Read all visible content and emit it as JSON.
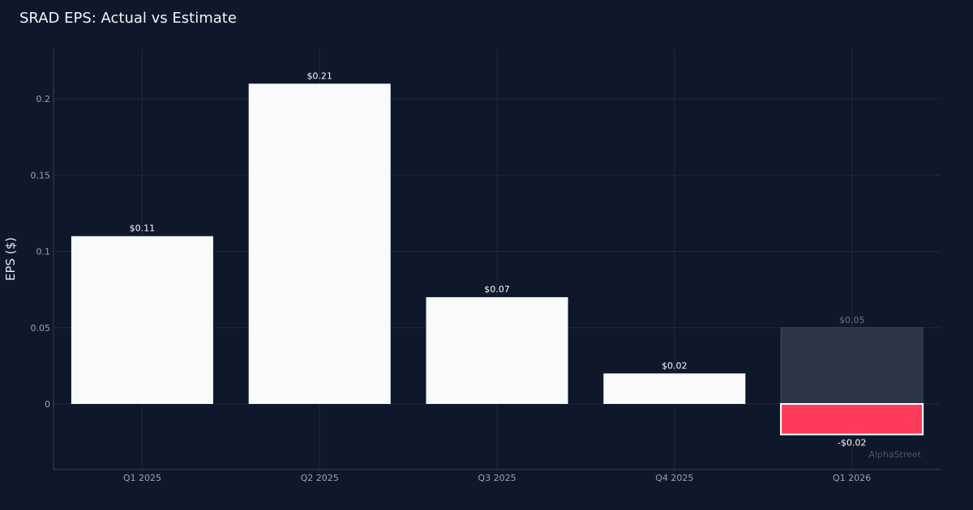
{
  "chart_data": {
    "type": "bar",
    "title": "SRAD EPS: Actual vs Estimate",
    "xlabel": "",
    "ylabel": "EPS ($)",
    "ylim": [
      -0.043,
      0.233
    ],
    "yticks": [
      0,
      0.05,
      0.1,
      0.15,
      0.2
    ],
    "ytick_labels": [
      "0",
      "0.05",
      "0.1",
      "0.15",
      "0.2"
    ],
    "grid": true,
    "categories": [
      "Q1 2025",
      "Q2 2025",
      "Q3 2025",
      "Q4 2025",
      "Q1 2026"
    ],
    "series": [
      {
        "values": [
          0.11,
          0.21,
          0.07,
          0.02,
          -0.02
        ],
        "labels": [
          "$0.11",
          "$0.21",
          "$0.07",
          "$0.02",
          "-$0.02"
        ]
      },
      {
        "values": [
          null,
          null,
          null,
          null,
          0.05
        ],
        "labels": [
          "",
          "",
          "",
          "",
          "$0.05"
        ]
      }
    ],
    "watermark": "AlphaStreet"
  },
  "colors": {
    "background": "#0f172a",
    "actual_bar": "#f8fafc",
    "miss_bar": "#ff3b5c",
    "estimate_bar": "#2b3547",
    "grid": "#1e293b",
    "axis": "#334155"
  }
}
